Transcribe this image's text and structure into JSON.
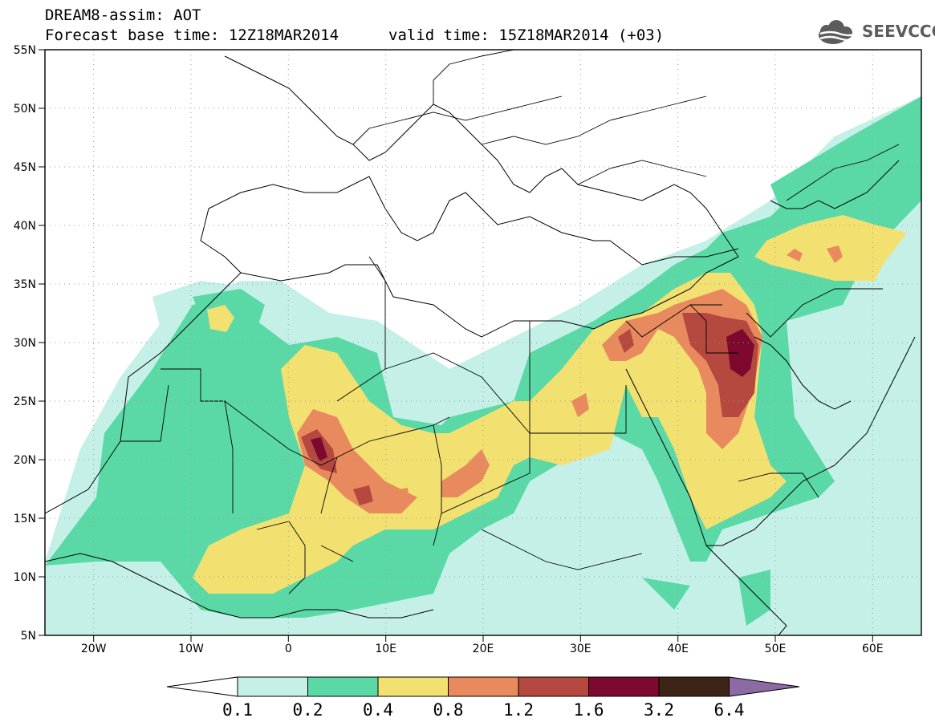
{
  "title": {
    "line1": "DREAM8-assim: AOT",
    "base": "Forecast base time: 12Z18MAR2014",
    "valid": "valid time: 15Z18MAR2014 (+03)"
  },
  "logo": {
    "text": "SEEVCCC",
    "icon": "cloud-icon"
  },
  "map": {
    "variable": "AOT",
    "lon_range": [
      -25,
      65
    ],
    "lat_range": [
      5,
      55
    ],
    "y_ticks": [
      "5N",
      "10N",
      "15N",
      "20N",
      "25N",
      "30N",
      "35N",
      "40N",
      "45N",
      "50N",
      "55N"
    ],
    "x_ticks": [
      "20W",
      "10W",
      "0",
      "10E",
      "20E",
      "30E",
      "40E",
      "50E",
      "60E"
    ],
    "grid": "dotted"
  },
  "colorbar": {
    "levels": [
      "0.1",
      "0.2",
      "0.4",
      "0.8",
      "1.2",
      "1.6",
      "3.2",
      "6.4"
    ],
    "colors": [
      "#ffffff",
      "#c4f0e8",
      "#5ad9a6",
      "#f2e071",
      "#e88a5e",
      "#b5483f",
      "#7d0a2e",
      "#3d2416",
      "#8c6aa3"
    ]
  }
}
